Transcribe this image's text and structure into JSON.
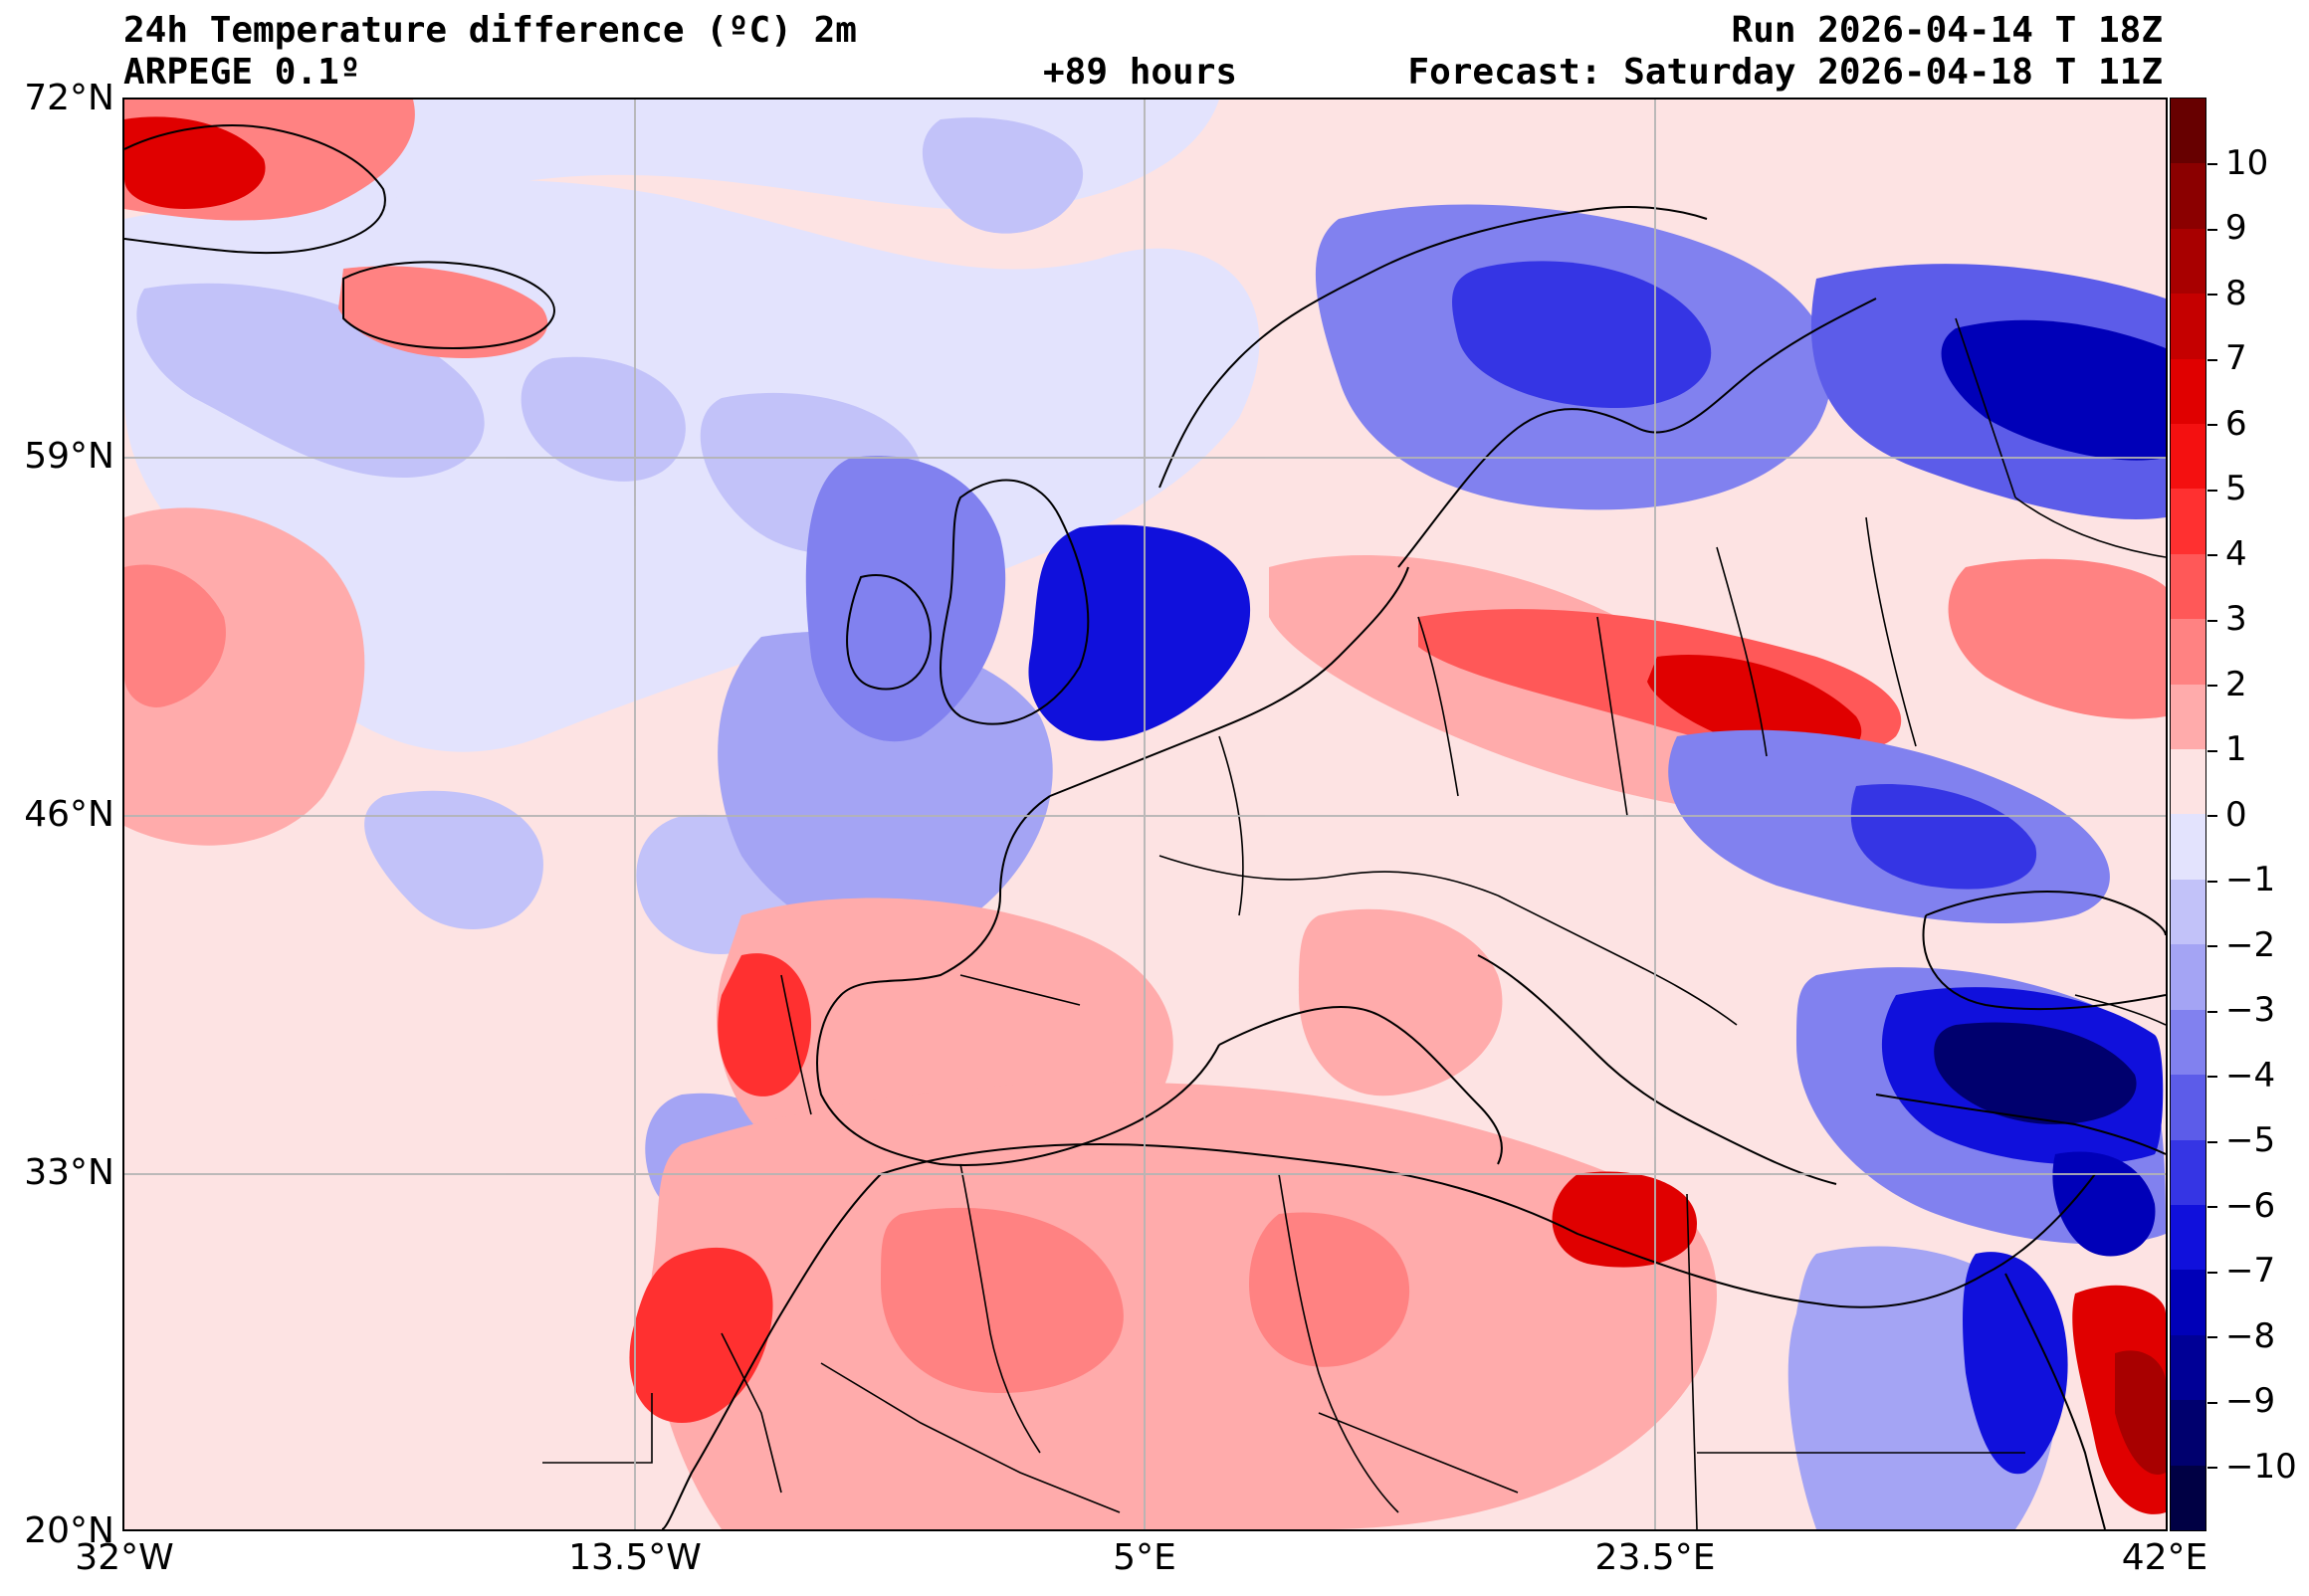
{
  "header": {
    "title": "24h Temperature difference (ºC) 2m",
    "model": "ARPEGE 0.1º",
    "lead_time": "+89 hours",
    "run": "Run 2026-04-14 T 18Z",
    "forecast": "Forecast: Saturday 2026-04-18 T 11Z"
  },
  "map": {
    "lat_labels": [
      "72°N",
      "59°N",
      "46°N",
      "33°N",
      "20°N"
    ],
    "lon_labels": [
      "32°W",
      "13.5°W",
      "5°E",
      "23.5°E",
      "42°E"
    ],
    "lat_range": [
      20,
      72
    ],
    "lon_range": [
      -32,
      42
    ],
    "gridline_color": "#b4b4b4",
    "coastline_color": "#000000"
  },
  "colorbar": {
    "ticks": [
      "10",
      "9",
      "8",
      "7",
      "6",
      "5",
      "4",
      "3",
      "2",
      "1",
      "0",
      "−1",
      "−2",
      "−3",
      "−4",
      "−5",
      "−6",
      "−7",
      "−8",
      "−9",
      "−10"
    ],
    "colors": [
      "#670000",
      "#8b0000",
      "#a80000",
      "#c50000",
      "#e00000",
      "#f41010",
      "#ff3030",
      "#ff5858",
      "#ff8282",
      "#ffabab",
      "#fde3e3",
      "#e3e3fd",
      "#c2c2f9",
      "#a4a4f4",
      "#8181ef",
      "#5c5ce9",
      "#3535e4",
      "#1010dc",
      "#0000b8",
      "#000096",
      "#00006e",
      "#000044"
    ]
  }
}
